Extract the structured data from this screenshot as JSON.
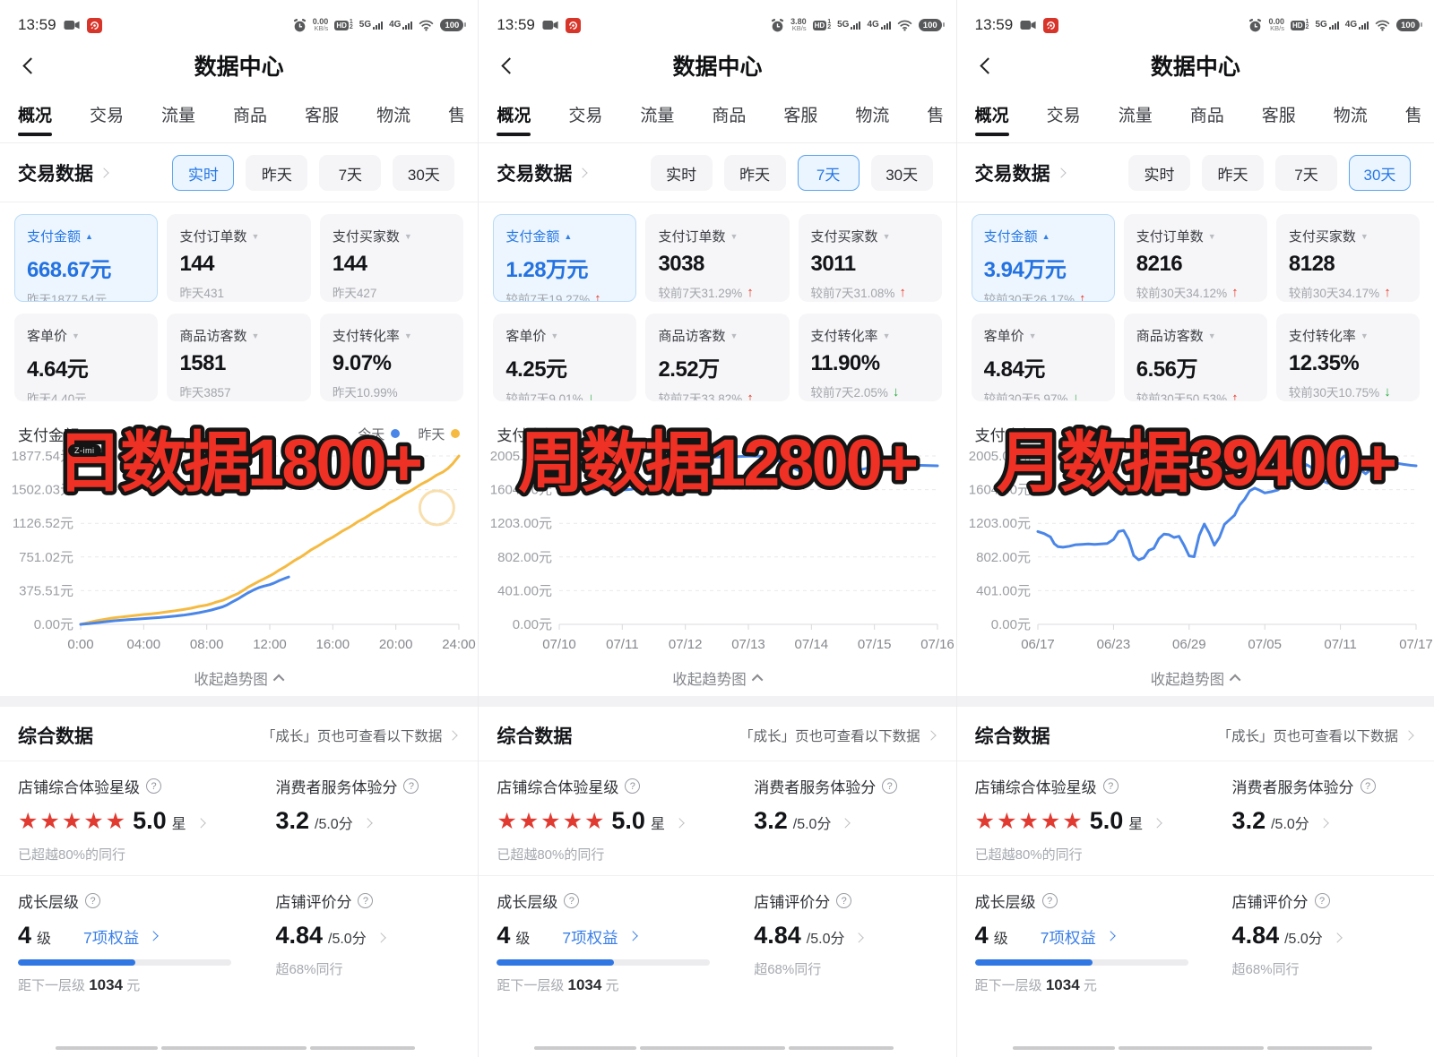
{
  "shared": {
    "status": {
      "time": "13:59",
      "speed_unit": "KB/s",
      "hd": "HD",
      "g5": "5G",
      "g4": "4G",
      "battery": "100"
    },
    "nav": {
      "title": "数据中心"
    },
    "tabs": [
      "概况",
      "交易",
      "流量",
      "商品",
      "客服",
      "物流",
      "售"
    ],
    "trade": {
      "title": "交易数据",
      "ranges": [
        "实时",
        "昨天",
        "7天",
        "30天"
      ]
    },
    "chart_footer": "收起趋势图",
    "overall": {
      "title": "综合数据",
      "link": "「成长」页也可查看以下数据",
      "star_label": "店铺综合体验星级",
      "stars": "★★★★★",
      "star_value": "5.0",
      "star_unit": "星",
      "star_sub": "已超越80%的同行",
      "consumer_label": "消费者服务体验分",
      "consumer_value": "3.2",
      "consumer_suffix": "/5.0分",
      "growth_label": "成长层级",
      "growth_value": "4",
      "growth_unit": "级",
      "growth_link": "7项权益",
      "growth_sub_prefix": "距下一层级",
      "growth_sub_value": "1034",
      "growth_sub_unit": "元",
      "rating_label": "店铺评价分",
      "rating_value": "4.84",
      "rating_suffix": "/5.0分",
      "rating_sub": "超68%同行"
    },
    "colors": {
      "accent_blue": "#2677e4",
      "up_red": "#e73726",
      "down_green": "#27a93c",
      "line_blue": "#4a86e8",
      "line_yellow": "#f5ba42",
      "overlay_red": "#ee3124",
      "star_red": "#e13a31"
    }
  },
  "panels": [
    {
      "status_speed": "0.00",
      "selected_range": 0,
      "overlay": "日数据1800+",
      "watermark": "Z-imi",
      "metrics": [
        {
          "label": "支付金额",
          "value": "668.67元",
          "sub": "昨天1877.54元",
          "trend": null,
          "selected": true
        },
        {
          "label": "支付订单数",
          "value": "144",
          "sub": "昨天431",
          "trend": null
        },
        {
          "label": "支付买家数",
          "value": "144",
          "sub": "昨天427",
          "trend": null
        },
        {
          "label": "客单价",
          "value": "4.64元",
          "sub": "昨天4.40元",
          "trend": null
        },
        {
          "label": "商品访客数",
          "value": "1581",
          "sub": "昨天3857",
          "trend": null
        },
        {
          "label": "支付转化率",
          "value": "9.07%",
          "sub": "昨天10.99%",
          "trend": null
        }
      ]
    },
    {
      "status_speed": "3.80",
      "selected_range": 2,
      "overlay": "周数据12800+",
      "watermark": "",
      "metrics": [
        {
          "label": "支付金额",
          "value": "1.28万元",
          "sub": "较前7天19.27%",
          "trend": "up",
          "selected": true
        },
        {
          "label": "支付订单数",
          "value": "3038",
          "sub": "较前7天31.29%",
          "trend": "up"
        },
        {
          "label": "支付买家数",
          "value": "3011",
          "sub": "较前7天31.08%",
          "trend": "up"
        },
        {
          "label": "客单价",
          "value": "4.25元",
          "sub": "较前7天9.01%",
          "trend": "down"
        },
        {
          "label": "商品访客数",
          "value": "2.52万",
          "sub": "较前7天33.82%",
          "trend": "up"
        },
        {
          "label": "支付转化率",
          "value": "11.90%",
          "sub": "较前7天2.05%",
          "trend": "down"
        }
      ]
    },
    {
      "status_speed": "0.00",
      "selected_range": 3,
      "overlay": "月数据39400+",
      "watermark": "",
      "metrics": [
        {
          "label": "支付金额",
          "value": "3.94万元",
          "sub": "较前30天26.17%",
          "trend": "up",
          "selected": true
        },
        {
          "label": "支付订单数",
          "value": "8216",
          "sub": "较前30天34.12%",
          "trend": "up"
        },
        {
          "label": "支付买家数",
          "value": "8128",
          "sub": "较前30天34.17%",
          "trend": "up"
        },
        {
          "label": "客单价",
          "value": "4.84元",
          "sub": "较前30天5.97%",
          "trend": "down"
        },
        {
          "label": "商品访客数",
          "value": "6.56万",
          "sub": "较前30天50.53%",
          "trend": "up"
        },
        {
          "label": "支付转化率",
          "value": "12.35%",
          "sub": "较前30天10.75%",
          "trend": "down"
        }
      ]
    }
  ],
  "chart_data": [
    {
      "type": "line",
      "title": "支付金额",
      "y_ticks": [
        "1877.54元",
        "1502.03元",
        "1126.52元",
        "751.02元",
        "375.51元",
        "0.00元"
      ],
      "y_max": 1877.54,
      "x_ticks": [
        "0:00",
        "04:00",
        "08:00",
        "12:00",
        "16:00",
        "20:00",
        "24:00"
      ],
      "x_max": 24,
      "grid": "dashed",
      "legend": [
        {
          "label": "今天",
          "color": "#4a86e8"
        },
        {
          "label": "昨天",
          "color": "#f5ba42"
        }
      ],
      "ring": [
        22.6,
        1300
      ],
      "series": [
        {
          "name": "昨天",
          "color": "#f5ba42",
          "points": [
            [
              0,
              0
            ],
            [
              0.5,
              20
            ],
            [
              1,
              40
            ],
            [
              1.5,
              55
            ],
            [
              2,
              70
            ],
            [
              2.5,
              80
            ],
            [
              3,
              90
            ],
            [
              3.5,
              100
            ],
            [
              4,
              110
            ],
            [
              4.5,
              118
            ],
            [
              5,
              128
            ],
            [
              5.5,
              140
            ],
            [
              6,
              152
            ],
            [
              6.5,
              165
            ],
            [
              7,
              180
            ],
            [
              7.5,
              200
            ],
            [
              8,
              215
            ],
            [
              8.3,
              230
            ],
            [
              8.6,
              248
            ],
            [
              9,
              268
            ],
            [
              9.3,
              290
            ],
            [
              9.6,
              315
            ],
            [
              10,
              345
            ],
            [
              10.3,
              378
            ],
            [
              10.6,
              412
            ],
            [
              11,
              450
            ],
            [
              11.3,
              478
            ],
            [
              11.6,
              505
            ],
            [
              12,
              540
            ],
            [
              12.3,
              570
            ],
            [
              12.6,
              605
            ],
            [
              13,
              645
            ],
            [
              13.3,
              680
            ],
            [
              13.6,
              715
            ],
            [
              14,
              755
            ],
            [
              14.3,
              790
            ],
            [
              14.6,
              828
            ],
            [
              15,
              868
            ],
            [
              15.3,
              900
            ],
            [
              15.6,
              935
            ],
            [
              16,
              972
            ],
            [
              16.3,
              1005
            ],
            [
              16.6,
              1040
            ],
            [
              17,
              1078
            ],
            [
              17.3,
              1110
            ],
            [
              17.6,
              1145
            ],
            [
              18,
              1182
            ],
            [
              18.3,
              1215
            ],
            [
              18.6,
              1250
            ],
            [
              19,
              1288
            ],
            [
              19.3,
              1320
            ],
            [
              19.6,
              1355
            ],
            [
              20,
              1392
            ],
            [
              20.3,
              1425
            ],
            [
              20.6,
              1458
            ],
            [
              21,
              1495
            ],
            [
              21.3,
              1528
            ],
            [
              21.6,
              1562
            ],
            [
              22,
              1598
            ],
            [
              22.3,
              1630
            ],
            [
              22.6,
              1665
            ],
            [
              23,
              1700
            ],
            [
              23.3,
              1738
            ],
            [
              23.6,
              1790
            ],
            [
              24,
              1877
            ]
          ]
        },
        {
          "name": "今天",
          "color": "#4a86e8",
          "points": [
            [
              0,
              0
            ],
            [
              0.5,
              8
            ],
            [
              1,
              18
            ],
            [
              1.5,
              28
            ],
            [
              2,
              38
            ],
            [
              2.5,
              45
            ],
            [
              3,
              52
            ],
            [
              3.5,
              58
            ],
            [
              4,
              64
            ],
            [
              4.5,
              70
            ],
            [
              5,
              76
            ],
            [
              5.5,
              84
            ],
            [
              6,
              92
            ],
            [
              6.5,
              102
            ],
            [
              7,
              115
            ],
            [
              7.5,
              130
            ],
            [
              8,
              148
            ],
            [
              8.3,
              160
            ],
            [
              8.6,
              175
            ],
            [
              9,
              195
            ],
            [
              9.3,
              218
            ],
            [
              9.6,
              248
            ],
            [
              10,
              285
            ],
            [
              10.3,
              318
            ],
            [
              10.6,
              350
            ],
            [
              11,
              385
            ],
            [
              11.3,
              408
            ],
            [
              11.6,
              425
            ],
            [
              12,
              442
            ],
            [
              12.3,
              462
            ],
            [
              12.6,
              488
            ],
            [
              13,
              515
            ],
            [
              13.2,
              528
            ]
          ]
        }
      ]
    },
    {
      "type": "line",
      "title": "支付金额",
      "y_ticks": [
        "2005.00元",
        "1604.00元",
        "1203.00元",
        "802.00元",
        "401.00元",
        "0.00元"
      ],
      "y_max": 2005,
      "x_ticks": [
        "07/10",
        "07/11",
        "07/12",
        "07/13",
        "07/14",
        "07/15",
        "07/16"
      ],
      "x_max": 6,
      "grid": "dashed",
      "legend": null,
      "series": [
        {
          "name": "支付金额",
          "color": "#4a86e8",
          "points": [
            [
              0,
              1655
            ],
            [
              0.25,
              1645
            ],
            [
              0.5,
              1625
            ],
            [
              0.75,
              1608
            ],
            [
              1,
              1600
            ],
            [
              1.15,
              1608
            ],
            [
              1.3,
              1645
            ],
            [
              1.5,
              1735
            ],
            [
              1.7,
              1845
            ],
            [
              1.85,
              1912
            ],
            [
              2,
              1950
            ],
            [
              2.2,
              1975
            ],
            [
              2.4,
              1988
            ],
            [
              2.6,
              1995
            ],
            [
              2.8,
              1998
            ],
            [
              3,
              2002
            ],
            [
              3.2,
              2003
            ],
            [
              3.4,
              1975
            ],
            [
              3.6,
              1905
            ],
            [
              3.8,
              1830
            ],
            [
              4,
              1790
            ],
            [
              4.15,
              1775
            ],
            [
              4.3,
              1772
            ],
            [
              4.5,
              1790
            ],
            [
              4.7,
              1828
            ],
            [
              4.9,
              1862
            ],
            [
              5.1,
              1885
            ],
            [
              5.3,
              1893
            ],
            [
              5.6,
              1896
            ],
            [
              6,
              1888
            ]
          ]
        }
      ]
    },
    {
      "type": "line",
      "title": "支付金额",
      "y_ticks": [
        "2005.00元",
        "1604.00元",
        "1203.00元",
        "802.00元",
        "401.00元",
        "0.00元"
      ],
      "y_max": 2005,
      "x_ticks": [
        "06/17",
        "06/23",
        "06/29",
        "07/05",
        "07/11",
        "07/17"
      ],
      "x_max": 30,
      "grid": "dashed",
      "legend": null,
      "series": [
        {
          "name": "支付金额",
          "color": "#4a86e8",
          "points": [
            [
              0,
              1105
            ],
            [
              0.5,
              1080
            ],
            [
              1,
              1040
            ],
            [
              1.3,
              960
            ],
            [
              1.6,
              925
            ],
            [
              2,
              918
            ],
            [
              2.5,
              930
            ],
            [
              3,
              948
            ],
            [
              3.5,
              952
            ],
            [
              4,
              958
            ],
            [
              4.5,
              952
            ],
            [
              5,
              958
            ],
            [
              5.5,
              962
            ],
            [
              6,
              1010
            ],
            [
              6.4,
              1105
            ],
            [
              6.8,
              1118
            ],
            [
              7.2,
              1010
            ],
            [
              7.6,
              820
            ],
            [
              8,
              768
            ],
            [
              8.4,
              792
            ],
            [
              8.8,
              880
            ],
            [
              9.2,
              905
            ],
            [
              9.6,
              1020
            ],
            [
              10,
              1075
            ],
            [
              10.4,
              1068
            ],
            [
              10.8,
              1035
            ],
            [
              11.2,
              1048
            ],
            [
              11.6,
              940
            ],
            [
              12,
              815
            ],
            [
              12.4,
              805
            ],
            [
              12.8,
              1060
            ],
            [
              13.2,
              1195
            ],
            [
              13.6,
              1085
            ],
            [
              14,
              942
            ],
            [
              14.4,
              1035
            ],
            [
              14.8,
              1190
            ],
            [
              15.2,
              1245
            ],
            [
              15.6,
              1298
            ],
            [
              16,
              1420
            ],
            [
              16.4,
              1490
            ],
            [
              16.8,
              1588
            ],
            [
              17.2,
              1622
            ],
            [
              17.6,
              1595
            ],
            [
              18,
              1565
            ],
            [
              18.5,
              1578
            ],
            [
              19,
              1598
            ],
            [
              19.5,
              1648
            ],
            [
              20,
              1702
            ],
            [
              20.5,
              1748
            ],
            [
              21,
              1848
            ],
            [
              21.3,
              1902
            ],
            [
              21.7,
              1868
            ],
            [
              22,
              1795
            ],
            [
              22.5,
              1712
            ],
            [
              23,
              1682
            ],
            [
              23.5,
              1725
            ],
            [
              24,
              1958
            ],
            [
              24.3,
              2005
            ],
            [
              24.7,
              1992
            ],
            [
              25,
              1962
            ],
            [
              25.5,
              1852
            ],
            [
              26,
              1792
            ],
            [
              26.5,
              1855
            ],
            [
              27,
              1922
            ],
            [
              27.5,
              1945
            ],
            [
              28,
              1932
            ],
            [
              28.5,
              1918
            ],
            [
              29,
              1905
            ],
            [
              29.6,
              1893
            ],
            [
              30,
              1888
            ]
          ]
        }
      ]
    }
  ]
}
